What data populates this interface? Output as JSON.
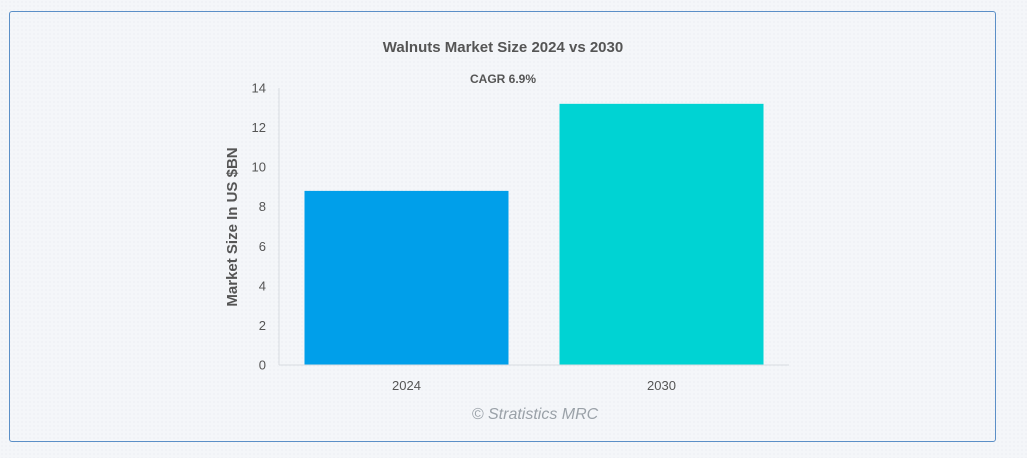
{
  "chart_data": {
    "type": "bar",
    "title": "Walnuts Market Size 2024 vs 2030",
    "subtitle": "CAGR 6.9%",
    "xlabel": "",
    "ylabel": "Market Size In US $BN",
    "categories": [
      "2024",
      "2030"
    ],
    "values": [
      8.8,
      13.2
    ],
    "ylim": [
      0,
      14
    ],
    "yticks": [
      0,
      2,
      4,
      6,
      8,
      10,
      12,
      14
    ],
    "colors": [
      "#009fea",
      "#00d3d3"
    ],
    "grid": false,
    "legend": "none"
  },
  "watermark": "© Stratistics MRC"
}
